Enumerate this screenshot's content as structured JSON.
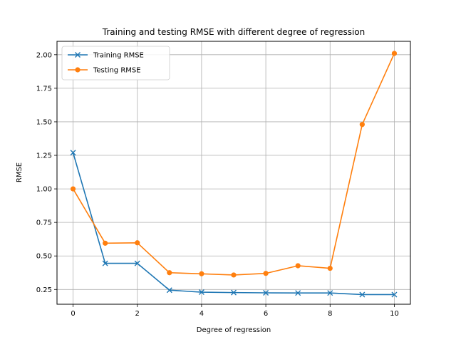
{
  "chart_data": {
    "type": "line",
    "title": "Training and testing RMSE with different degree of regression",
    "xlabel": "Degree of regression",
    "ylabel": "RMSE",
    "x": [
      0,
      1,
      2,
      3,
      4,
      5,
      6,
      7,
      8,
      9,
      10
    ],
    "xlim": [
      -0.5,
      10.5
    ],
    "ylim": [
      0.14,
      2.1
    ],
    "xticks": [
      0,
      2,
      4,
      6,
      8,
      10
    ],
    "yticks": [
      0.25,
      0.5,
      0.75,
      1.0,
      1.25,
      1.5,
      1.75,
      2.0
    ],
    "ytick_labels": [
      "0.25",
      "0.50",
      "0.75",
      "1.00",
      "1.25",
      "1.50",
      "1.75",
      "2.00"
    ],
    "grid": true,
    "legend_position": "top-left",
    "series": [
      {
        "name": "Training RMSE",
        "marker": "x",
        "color": "#1f77b4",
        "values": [
          1.27,
          0.445,
          0.445,
          0.245,
          0.23,
          0.227,
          0.225,
          0.224,
          0.224,
          0.212,
          0.212
        ]
      },
      {
        "name": "Testing RMSE",
        "marker": "o",
        "color": "#ff7f0e",
        "values": [
          1.0,
          0.595,
          0.598,
          0.375,
          0.367,
          0.358,
          0.37,
          0.427,
          0.408,
          1.48,
          2.01
        ]
      }
    ]
  }
}
